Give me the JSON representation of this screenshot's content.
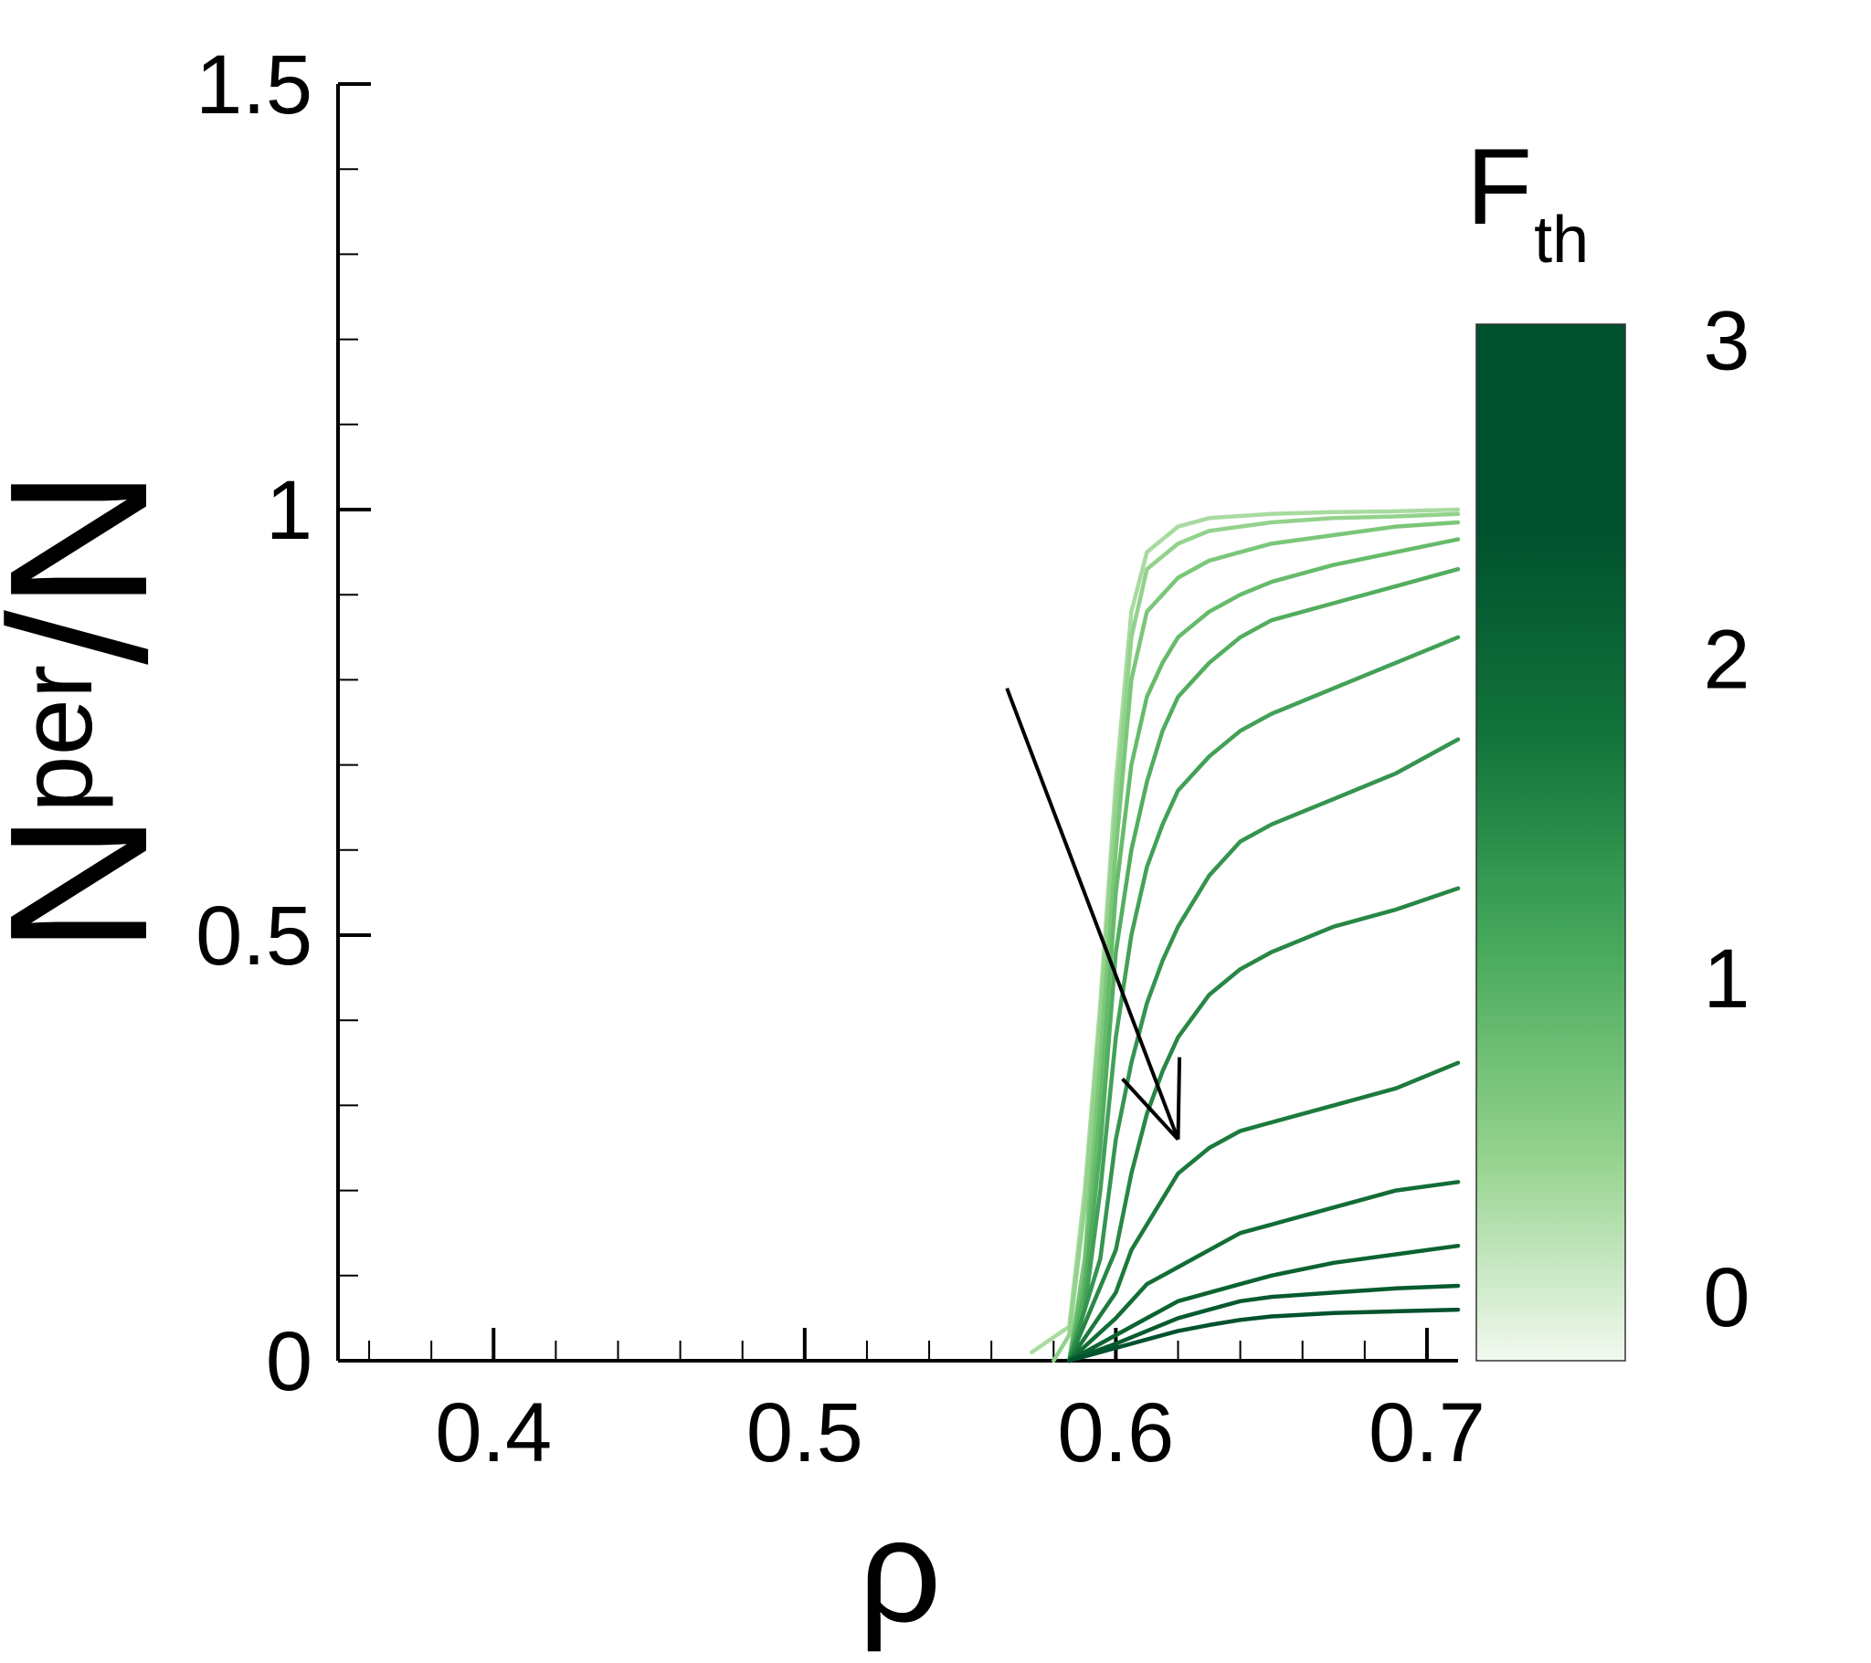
{
  "chart_data": {
    "type": "line",
    "xlabel": "ρ",
    "ylabel_main": "N",
    "ylabel_sub": "per",
    "ylabel_tail": "/N",
    "xlim": [
      0.35,
      0.71
    ],
    "ylim": [
      0,
      1.5
    ],
    "xticks": [
      0.4,
      0.5,
      0.6,
      0.7
    ],
    "xtick_labels": [
      "0.4",
      "0.5",
      "0.6",
      "0.7"
    ],
    "x_minor_step": 0.02,
    "yticks": [
      0,
      0.5,
      1,
      1.5
    ],
    "ytick_labels": [
      "0",
      "0.5",
      "1",
      "1.5"
    ],
    "y_minor_step": 0.1,
    "colorbar": {
      "label_main": "F",
      "label_sub": "th",
      "range": [
        -0.2,
        3.05
      ],
      "ticks": [
        0,
        1,
        2,
        3
      ],
      "tick_labels": [
        "0",
        "1",
        "2",
        "3"
      ],
      "colors": [
        "#f2f9ef",
        "#93d28c",
        "#47a95c",
        "#13743b",
        "#00522e",
        "#00522e"
      ]
    },
    "series": [
      {
        "Fth": 0.0,
        "color": "#a8dba0",
        "x": [
          0.573,
          0.585,
          0.59,
          0.595,
          0.6,
          0.605,
          0.61,
          0.62,
          0.63,
          0.65,
          0.67,
          0.69,
          0.71
        ],
        "y": [
          0.01,
          0.04,
          0.2,
          0.42,
          0.68,
          0.88,
          0.95,
          0.98,
          0.99,
          0.995,
          0.997,
          0.998,
          1.0
        ]
      },
      {
        "Fth": 0.25,
        "color": "#93d28c",
        "x": [
          0.58,
          0.585,
          0.59,
          0.595,
          0.6,
          0.605,
          0.61,
          0.62,
          0.63,
          0.65,
          0.67,
          0.69,
          0.71
        ],
        "y": [
          0.0,
          0.03,
          0.18,
          0.4,
          0.65,
          0.85,
          0.93,
          0.96,
          0.975,
          0.985,
          0.99,
          0.992,
          0.995
        ]
      },
      {
        "Fth": 0.5,
        "color": "#7bc77a",
        "x": [
          0.585,
          0.59,
          0.595,
          0.6,
          0.605,
          0.61,
          0.62,
          0.63,
          0.64,
          0.65,
          0.67,
          0.69,
          0.71
        ],
        "y": [
          0.0,
          0.12,
          0.35,
          0.6,
          0.8,
          0.88,
          0.92,
          0.94,
          0.95,
          0.96,
          0.97,
          0.98,
          0.985
        ]
      },
      {
        "Fth": 0.75,
        "color": "#66bb6a",
        "x": [
          0.585,
          0.59,
          0.595,
          0.6,
          0.605,
          0.61,
          0.615,
          0.62,
          0.63,
          0.64,
          0.65,
          0.67,
          0.69,
          0.71
        ],
        "y": [
          0.0,
          0.1,
          0.3,
          0.55,
          0.7,
          0.78,
          0.82,
          0.85,
          0.88,
          0.9,
          0.915,
          0.935,
          0.95,
          0.965
        ]
      },
      {
        "Fth": 1.0,
        "color": "#52ad5e",
        "x": [
          0.585,
          0.59,
          0.595,
          0.6,
          0.605,
          0.61,
          0.615,
          0.62,
          0.63,
          0.64,
          0.65,
          0.67,
          0.69,
          0.71
        ],
        "y": [
          0.0,
          0.08,
          0.25,
          0.48,
          0.6,
          0.68,
          0.74,
          0.78,
          0.82,
          0.85,
          0.87,
          0.89,
          0.91,
          0.93
        ]
      },
      {
        "Fth": 1.25,
        "color": "#42a157",
        "x": [
          0.585,
          0.59,
          0.595,
          0.6,
          0.605,
          0.61,
          0.615,
          0.62,
          0.63,
          0.64,
          0.65,
          0.67,
          0.69,
          0.71
        ],
        "y": [
          0.0,
          0.06,
          0.2,
          0.38,
          0.5,
          0.58,
          0.63,
          0.67,
          0.71,
          0.74,
          0.76,
          0.79,
          0.82,
          0.85
        ]
      },
      {
        "Fth": 1.5,
        "color": "#35944f",
        "x": [
          0.585,
          0.595,
          0.6,
          0.605,
          0.61,
          0.615,
          0.62,
          0.63,
          0.64,
          0.65,
          0.67,
          0.69,
          0.71
        ],
        "y": [
          0.0,
          0.12,
          0.26,
          0.35,
          0.42,
          0.47,
          0.51,
          0.57,
          0.61,
          0.63,
          0.66,
          0.69,
          0.73
        ]
      },
      {
        "Fth": 1.75,
        "color": "#288744",
        "x": [
          0.585,
          0.6,
          0.605,
          0.61,
          0.615,
          0.62,
          0.63,
          0.64,
          0.65,
          0.67,
          0.69,
          0.71
        ],
        "y": [
          0.0,
          0.13,
          0.22,
          0.29,
          0.34,
          0.38,
          0.43,
          0.46,
          0.48,
          0.51,
          0.53,
          0.555
        ]
      },
      {
        "Fth": 2.0,
        "color": "#1b7a3c",
        "x": [
          0.585,
          0.6,
          0.605,
          0.61,
          0.615,
          0.62,
          0.63,
          0.64,
          0.65,
          0.67,
          0.69,
          0.71
        ],
        "y": [
          0.0,
          0.08,
          0.13,
          0.16,
          0.19,
          0.22,
          0.25,
          0.27,
          0.28,
          0.3,
          0.32,
          0.35
        ]
      },
      {
        "Fth": 2.25,
        "color": "#126d36",
        "x": [
          0.585,
          0.6,
          0.605,
          0.61,
          0.615,
          0.62,
          0.63,
          0.64,
          0.65,
          0.67,
          0.69,
          0.71
        ],
        "y": [
          0.0,
          0.05,
          0.07,
          0.09,
          0.1,
          0.11,
          0.13,
          0.15,
          0.16,
          0.18,
          0.2,
          0.21
        ]
      },
      {
        "Fth": 2.5,
        "color": "#0b6331",
        "x": [
          0.585,
          0.6,
          0.61,
          0.62,
          0.63,
          0.64,
          0.65,
          0.67,
          0.69,
          0.71
        ],
        "y": [
          0.0,
          0.03,
          0.05,
          0.07,
          0.08,
          0.09,
          0.1,
          0.115,
          0.125,
          0.135
        ]
      },
      {
        "Fth": 2.75,
        "color": "#065a2f",
        "x": [
          0.585,
          0.6,
          0.61,
          0.62,
          0.63,
          0.64,
          0.65,
          0.67,
          0.69,
          0.71
        ],
        "y": [
          0.0,
          0.02,
          0.035,
          0.05,
          0.06,
          0.07,
          0.075,
          0.08,
          0.085,
          0.088
        ]
      },
      {
        "Fth": 3.0,
        "color": "#00522e",
        "x": [
          0.585,
          0.6,
          0.61,
          0.62,
          0.63,
          0.64,
          0.65,
          0.67,
          0.69,
          0.71
        ],
        "y": [
          0.0,
          0.015,
          0.025,
          0.035,
          0.042,
          0.048,
          0.052,
          0.056,
          0.058,
          0.06
        ]
      }
    ],
    "arrow": {
      "from": [
        0.565,
        0.79
      ],
      "to": [
        0.62,
        0.26
      ]
    }
  }
}
